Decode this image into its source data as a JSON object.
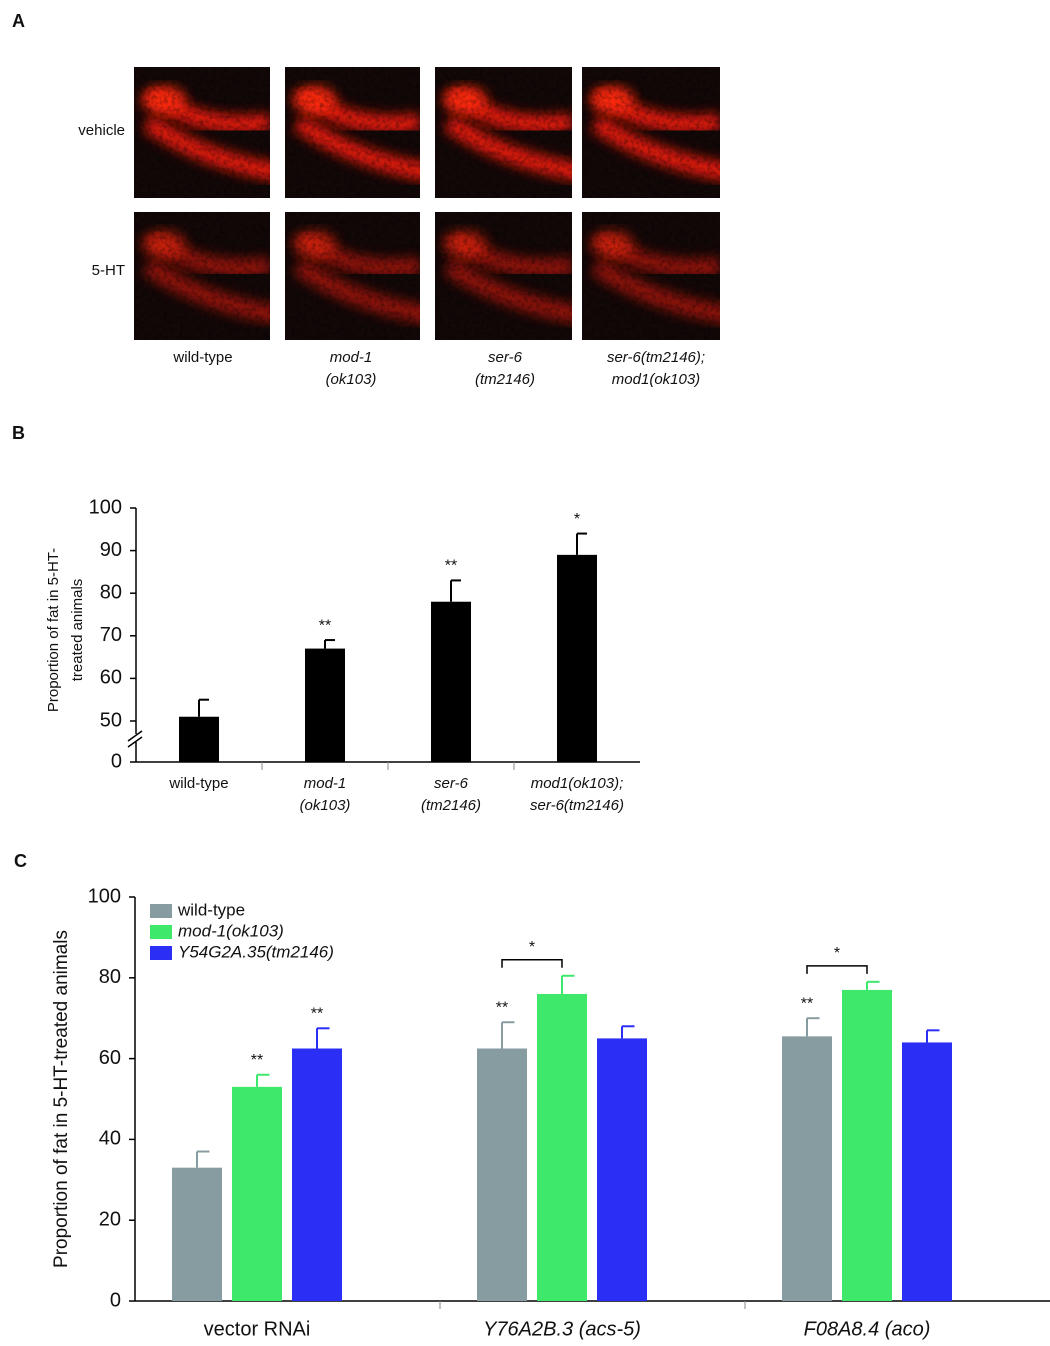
{
  "panel_a": {
    "label": "A",
    "rows": [
      "vehicle",
      "5-HT"
    ],
    "columns": [
      [
        "wild-type"
      ],
      [
        "mod-1",
        "(ok103)"
      ],
      [
        "ser-6",
        "(tm2146)"
      ],
      [
        "ser-6(tm2146);",
        "mod1(ok103)"
      ]
    ],
    "italic_columns": [
      false,
      true,
      true,
      true
    ]
  },
  "chart_data": [
    {
      "type": "bar",
      "label": "B",
      "y_label": [
        "Proportion of fat in 5-HT-",
        "treated animals"
      ],
      "categories": [
        [
          "wild-type"
        ],
        [
          "mod-1",
          "(ok103)"
        ],
        [
          "ser-6",
          "(tm2146)"
        ],
        [
          "mod1(ok103);",
          "ser-6(tm2146)"
        ]
      ],
      "italic_categories": [
        false,
        true,
        true,
        true
      ],
      "series": [
        {
          "color": "#000000",
          "values": [
            51,
            67,
            78,
            89
          ],
          "errors": [
            4,
            2,
            5,
            5
          ],
          "annotations": [
            null,
            "**",
            "**",
            "*"
          ]
        }
      ],
      "ylim": [
        0,
        100
      ],
      "yticks": [
        0,
        50,
        60,
        70,
        80,
        90,
        100
      ],
      "broken_axis": true
    },
    {
      "type": "grouped_bar",
      "label": "C",
      "y_label": [
        "Proportion of fat in 5-HT-treated animals"
      ],
      "categories": [
        [
          "vector RNAi"
        ],
        [
          "Y76A2B.3 (acs-5)"
        ],
        [
          "F08A8.4 (aco)"
        ]
      ],
      "italic_categories": [
        false,
        true,
        true
      ],
      "series": [
        {
          "name": "wild-type",
          "italic": false,
          "color": "#879ca1",
          "values": [
            33,
            62.5,
            65.5
          ],
          "errors": [
            4,
            6.5,
            4.5
          ],
          "annotations": [
            null,
            "**",
            "**"
          ]
        },
        {
          "name": "mod-1(ok103)",
          "italic": true,
          "color": "#3de86b",
          "values": [
            53,
            76,
            77
          ],
          "errors": [
            3,
            4.5,
            2
          ],
          "annotations": [
            "**",
            null,
            null
          ]
        },
        {
          "name": "Y54G2A.35(tm2146)",
          "italic": true,
          "color": "#2b2ff5",
          "values": [
            62.5,
            65,
            64
          ],
          "errors": [
            5,
            3,
            3
          ],
          "annotations": [
            "**",
            null,
            null
          ]
        }
      ],
      "bracket_labels": [
        null,
        "*",
        "*"
      ],
      "ylim": [
        0,
        100
      ],
      "yticks": [
        0,
        20,
        40,
        60,
        80,
        100
      ]
    }
  ]
}
